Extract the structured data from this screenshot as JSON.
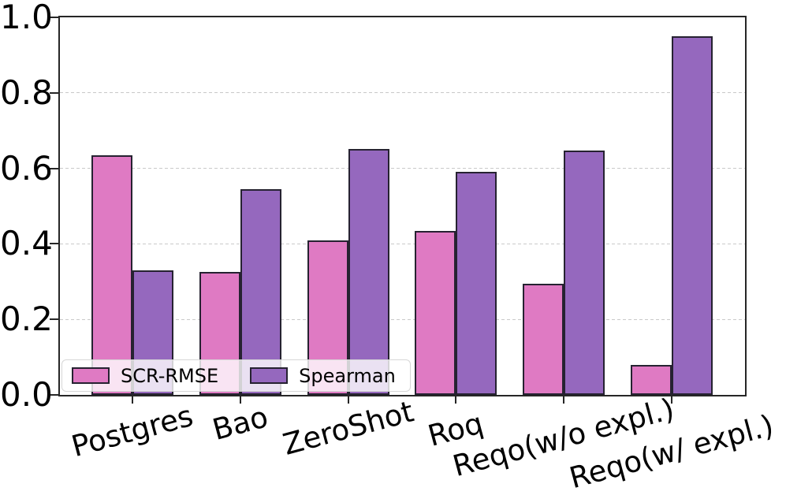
{
  "chart_data": {
    "type": "bar",
    "title": "",
    "xlabel": "",
    "ylabel": "",
    "categories": [
      "Postgres",
      "Bao",
      "ZeroShot",
      "Roq",
      "Reqo(w/o expl.)",
      "Reqo(w/ expl.)"
    ],
    "series": [
      {
        "name": "SCR-RMSE",
        "color": "#df7ac3",
        "values": [
          0.635,
          0.325,
          0.41,
          0.435,
          0.295,
          0.08
        ]
      },
      {
        "name": "Spearman",
        "color": "#9568be",
        "values": [
          0.33,
          0.545,
          0.652,
          0.59,
          0.648,
          0.95
        ]
      }
    ],
    "ylim": [
      0.0,
      1.0
    ],
    "ytick_labels": [
      "0.0",
      "0.2",
      "0.4",
      "0.6",
      "0.8",
      "1.0"
    ],
    "ytick_values": [
      0.0,
      0.2,
      0.4,
      0.6,
      0.8,
      1.0
    ],
    "grid": {
      "axis": "y",
      "style": "dashed",
      "color": "#c9c9c9",
      "levels": [
        0.2,
        0.4,
        0.6,
        0.8
      ]
    },
    "legend": {
      "position": "lower-left",
      "entries": [
        "SCR-RMSE",
        "Spearman"
      ]
    },
    "bar_edge_color": "#262231",
    "spine_color": "#262626",
    "xtick_rotation_deg": 15
  }
}
